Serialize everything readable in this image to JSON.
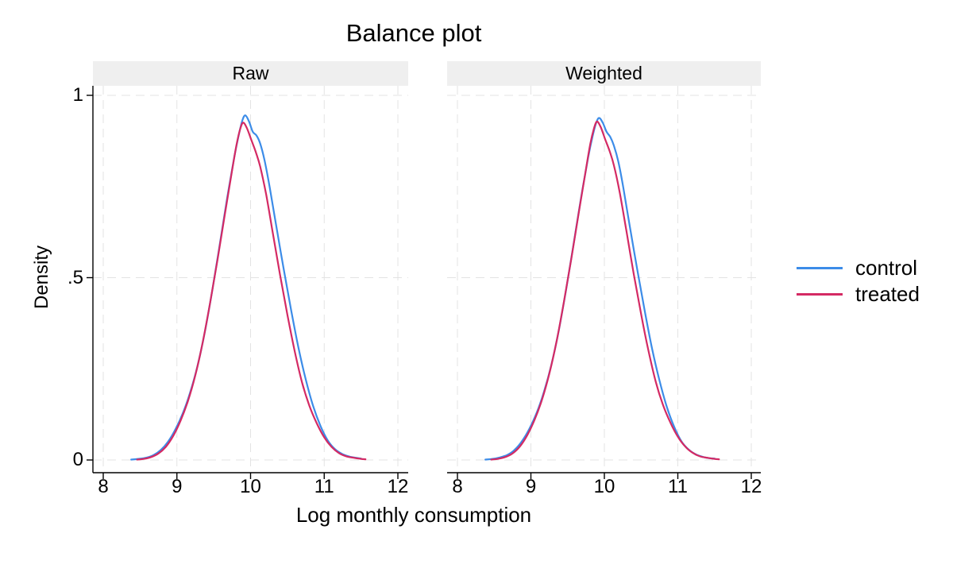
{
  "colors": {
    "control": "#3C8CE8",
    "treated": "#D42A64",
    "grid": "#E3E3E3",
    "panel_header_bg": "#EFEFEF",
    "axis": "#000000"
  },
  "chart_data": {
    "type": "line",
    "title": "Balance plot",
    "xlabel": "Log monthly consumption",
    "ylabel": "Density",
    "x_ticks": [
      "8",
      "9",
      "10",
      "11",
      "12"
    ],
    "x_tick_values": [
      8,
      9,
      10,
      11,
      12
    ],
    "y_ticks": [
      "0",
      ".5",
      "1"
    ],
    "y_tick_values": [
      0,
      0.5,
      1
    ],
    "xlim": [
      7.86,
      12.14
    ],
    "ylim": [
      -0.035,
      1.026
    ],
    "grid": true,
    "legend_position": "right",
    "legend": [
      {
        "label": "control",
        "color_key": "control"
      },
      {
        "label": "treated",
        "color_key": "treated"
      }
    ],
    "panels": [
      {
        "label": "Raw",
        "series": [
          {
            "name": "control",
            "points": [
              [
                8.38,
                0.001
              ],
              [
                8.48,
                0.003
              ],
              [
                8.58,
                0.006
              ],
              [
                8.68,
                0.013
              ],
              [
                8.78,
                0.027
              ],
              [
                8.88,
                0.05
              ],
              [
                8.98,
                0.084
              ],
              [
                9.08,
                0.128
              ],
              [
                9.18,
                0.185
              ],
              [
                9.28,
                0.258
              ],
              [
                9.38,
                0.352
              ],
              [
                9.48,
                0.465
              ],
              [
                9.58,
                0.588
              ],
              [
                9.68,
                0.715
              ],
              [
                9.78,
                0.832
              ],
              [
                9.84,
                0.892
              ],
              [
                9.89,
                0.932
              ],
              [
                9.93,
                0.945
              ],
              [
                9.98,
                0.928
              ],
              [
                10.03,
                0.9
              ],
              [
                10.08,
                0.89
              ],
              [
                10.13,
                0.868
              ],
              [
                10.19,
                0.822
              ],
              [
                10.26,
                0.748
              ],
              [
                10.35,
                0.64
              ],
              [
                10.45,
                0.524
              ],
              [
                10.55,
                0.412
              ],
              [
                10.65,
                0.308
              ],
              [
                10.75,
                0.22
              ],
              [
                10.85,
                0.148
              ],
              [
                10.95,
                0.093
              ],
              [
                11.05,
                0.053
              ],
              [
                11.15,
                0.029
              ],
              [
                11.25,
                0.016
              ],
              [
                11.35,
                0.009
              ],
              [
                11.43,
                0.006
              ],
              [
                11.5,
                0.004
              ]
            ]
          },
          {
            "name": "treated",
            "points": [
              [
                8.46,
                0.001
              ],
              [
                8.55,
                0.003
              ],
              [
                8.65,
                0.008
              ],
              [
                8.75,
                0.018
              ],
              [
                8.85,
                0.036
              ],
              [
                8.95,
                0.066
              ],
              [
                9.05,
                0.108
              ],
              [
                9.15,
                0.162
              ],
              [
                9.25,
                0.232
              ],
              [
                9.35,
                0.322
              ],
              [
                9.45,
                0.43
              ],
              [
                9.55,
                0.548
              ],
              [
                9.65,
                0.672
              ],
              [
                9.75,
                0.795
              ],
              [
                9.81,
                0.865
              ],
              [
                9.86,
                0.908
              ],
              [
                9.9,
                0.925
              ],
              [
                9.95,
                0.91
              ],
              [
                10.01,
                0.878
              ],
              [
                10.07,
                0.845
              ],
              [
                10.13,
                0.805
              ],
              [
                10.21,
                0.73
              ],
              [
                10.3,
                0.625
              ],
              [
                10.4,
                0.508
              ],
              [
                10.5,
                0.398
              ],
              [
                10.6,
                0.298
              ],
              [
                10.7,
                0.212
              ],
              [
                10.8,
                0.148
              ],
              [
                10.9,
                0.1
              ],
              [
                11.0,
                0.062
              ],
              [
                11.1,
                0.036
              ],
              [
                11.2,
                0.019
              ],
              [
                11.3,
                0.01
              ],
              [
                11.4,
                0.006
              ],
              [
                11.5,
                0.003
              ],
              [
                11.56,
                0.002
              ]
            ]
          }
        ]
      },
      {
        "label": "Weighted",
        "series": [
          {
            "name": "control",
            "points": [
              [
                8.38,
                0.001
              ],
              [
                8.48,
                0.003
              ],
              [
                8.58,
                0.007
              ],
              [
                8.68,
                0.014
              ],
              [
                8.78,
                0.028
              ],
              [
                8.88,
                0.052
              ],
              [
                8.98,
                0.086
              ],
              [
                9.08,
                0.13
              ],
              [
                9.18,
                0.188
              ],
              [
                9.28,
                0.262
              ],
              [
                9.38,
                0.356
              ],
              [
                9.48,
                0.468
              ],
              [
                9.58,
                0.59
              ],
              [
                9.68,
                0.716
              ],
              [
                9.78,
                0.83
              ],
              [
                9.84,
                0.888
              ],
              [
                9.89,
                0.925
              ],
              [
                9.93,
                0.938
              ],
              [
                9.98,
                0.924
              ],
              [
                10.03,
                0.9
              ],
              [
                10.08,
                0.886
              ],
              [
                10.13,
                0.862
              ],
              [
                10.19,
                0.818
              ],
              [
                10.26,
                0.745
              ],
              [
                10.35,
                0.636
              ],
              [
                10.45,
                0.52
              ],
              [
                10.55,
                0.408
              ],
              [
                10.65,
                0.305
              ],
              [
                10.75,
                0.218
              ],
              [
                10.85,
                0.146
              ],
              [
                10.95,
                0.091
              ],
              [
                11.05,
                0.051
              ],
              [
                11.15,
                0.028
              ],
              [
                11.25,
                0.015
              ],
              [
                11.35,
                0.008
              ],
              [
                11.43,
                0.005
              ],
              [
                11.5,
                0.004
              ]
            ]
          },
          {
            "name": "treated",
            "points": [
              [
                8.46,
                0.001
              ],
              [
                8.55,
                0.003
              ],
              [
                8.65,
                0.008
              ],
              [
                8.75,
                0.018
              ],
              [
                8.85,
                0.037
              ],
              [
                8.95,
                0.068
              ],
              [
                9.05,
                0.11
              ],
              [
                9.15,
                0.165
              ],
              [
                9.25,
                0.236
              ],
              [
                9.35,
                0.326
              ],
              [
                9.45,
                0.434
              ],
              [
                9.55,
                0.552
              ],
              [
                9.65,
                0.676
              ],
              [
                9.75,
                0.798
              ],
              [
                9.81,
                0.868
              ],
              [
                9.86,
                0.91
              ],
              [
                9.9,
                0.928
              ],
              [
                9.95,
                0.913
              ],
              [
                10.01,
                0.88
              ],
              [
                10.07,
                0.848
              ],
              [
                10.13,
                0.808
              ],
              [
                10.21,
                0.733
              ],
              [
                10.3,
                0.628
              ],
              [
                10.4,
                0.51
              ],
              [
                10.5,
                0.4
              ],
              [
                10.6,
                0.3
              ],
              [
                10.7,
                0.214
              ],
              [
                10.8,
                0.15
              ],
              [
                10.9,
                0.102
              ],
              [
                11.0,
                0.064
              ],
              [
                11.1,
                0.037
              ],
              [
                11.2,
                0.02
              ],
              [
                11.3,
                0.01
              ],
              [
                11.4,
                0.006
              ],
              [
                11.5,
                0.003
              ],
              [
                11.56,
                0.002
              ]
            ]
          }
        ]
      }
    ]
  }
}
